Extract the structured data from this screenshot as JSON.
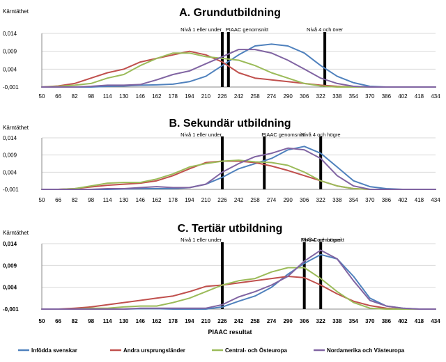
{
  "chart_data": [
    {
      "type": "line",
      "title": "A. Grundutbildning",
      "ylabel": "Kärntäthet",
      "xlabel": "",
      "ylim": [
        -0.001,
        0.014
      ],
      "yticks": [
        "-0,001",
        "0,004",
        "0,009",
        "0,014"
      ],
      "x": [
        50,
        66,
        82,
        98,
        114,
        130,
        146,
        162,
        178,
        194,
        210,
        226,
        242,
        258,
        274,
        290,
        306,
        322,
        338,
        354,
        370,
        386,
        402,
        418,
        434
      ],
      "annotations": [
        {
          "text": "Nivå 1 eller under",
          "x": 226
        },
        {
          "text": "PIAAC genomsnitt",
          "x": 232
        },
        {
          "text": "Nivå 4 och över",
          "x": 326
        }
      ],
      "series": [
        {
          "name": "Infödda svenskar",
          "color": "#4f81bd",
          "values": [
            -0.001,
            -0.001,
            -0.001,
            -0.001,
            -0.0008,
            -0.0007,
            -0.0005,
            -0.0004,
            -0.0002,
            0.0005,
            0.002,
            0.005,
            0.008,
            0.0105,
            0.011,
            0.0105,
            0.0085,
            0.005,
            0.002,
            0.0002,
            -0.0008,
            -0.001,
            -0.001,
            -0.001,
            -0.001
          ]
        },
        {
          "name": "Andra ursprungsländer",
          "color": "#c0504d",
          "values": [
            -0.001,
            -0.0007,
            0.0,
            0.0015,
            0.003,
            0.004,
            0.006,
            0.007,
            0.008,
            0.009,
            0.008,
            0.006,
            0.003,
            0.0015,
            0.001,
            0.0005,
            0.0,
            -0.0005,
            -0.0008,
            -0.001,
            -0.001,
            -0.001,
            -0.001,
            -0.001,
            -0.001
          ]
        },
        {
          "name": "Central- och Östeuropa",
          "color": "#9bbb59",
          "values": [
            -0.001,
            -0.0008,
            -0.0005,
            0.0,
            0.0015,
            0.0025,
            0.005,
            0.007,
            0.0085,
            0.0085,
            0.0075,
            0.007,
            0.0065,
            0.005,
            0.003,
            0.0015,
            0.0,
            -0.0007,
            -0.001,
            -0.001,
            -0.001,
            -0.001,
            -0.001,
            -0.001,
            -0.001
          ]
        },
        {
          "name": "Nordamerika och Västeuropa",
          "color": "#8064a2",
          "values": [
            -0.001,
            -0.001,
            -0.001,
            -0.0008,
            -0.0005,
            -0.0005,
            -0.0003,
            0.001,
            0.0025,
            0.0035,
            0.0055,
            0.0075,
            0.0095,
            0.0095,
            0.0085,
            0.0065,
            0.004,
            0.0015,
            0.0,
            -0.0008,
            -0.001,
            -0.001,
            -0.001,
            -0.001,
            -0.001
          ]
        }
      ]
    },
    {
      "type": "line",
      "title": "B. Sekundär utbildning",
      "ylabel": "Kärntäthet",
      "xlabel": "",
      "ylim": [
        -0.001,
        0.014
      ],
      "yticks": [
        "-0,001",
        "0,004",
        "0,009",
        "0,014"
      ],
      "x": [
        50,
        66,
        82,
        98,
        114,
        130,
        146,
        162,
        178,
        194,
        210,
        226,
        242,
        258,
        274,
        290,
        306,
        322,
        338,
        354,
        370,
        386,
        402,
        418,
        434
      ],
      "annotations": [
        {
          "text": "Nivå 1 eller under",
          "x": 226
        },
        {
          "text": "PIAAC genomsnitt",
          "x": 267
        },
        {
          "text": "Nivå 4 och högre",
          "x": 322
        }
      ],
      "series": [
        {
          "name": "Infödda svenskar",
          "color": "#4f81bd",
          "values": [
            -0.001,
            -0.001,
            -0.001,
            -0.001,
            -0.001,
            -0.0009,
            -0.0008,
            -0.0008,
            -0.0008,
            -0.0005,
            0.0005,
            0.0025,
            0.005,
            0.0065,
            0.008,
            0.0105,
            0.0115,
            0.0095,
            0.0055,
            0.0015,
            -0.0002,
            -0.0008,
            -0.001,
            -0.001,
            -0.001
          ]
        },
        {
          "name": "Andra ursprungsländer",
          "color": "#c0504d",
          "values": [
            -0.001,
            -0.001,
            -0.0008,
            -0.0003,
            0.0002,
            0.0005,
            0.0008,
            0.0015,
            0.003,
            0.005,
            0.0068,
            0.0072,
            0.0072,
            0.0068,
            0.0058,
            0.0045,
            0.003,
            0.0015,
            0.0,
            -0.0008,
            -0.001,
            -0.001,
            -0.001,
            -0.001,
            -0.001
          ]
        },
        {
          "name": "Central- och Östeuropa",
          "color": "#9bbb59",
          "values": [
            -0.001,
            -0.001,
            -0.0008,
            0.0,
            0.0008,
            0.001,
            0.001,
            0.002,
            0.0035,
            0.0055,
            0.0065,
            0.0072,
            0.0075,
            0.007,
            0.0068,
            0.006,
            0.004,
            0.0015,
            0.0,
            -0.0008,
            -0.001,
            -0.001,
            -0.001,
            -0.001,
            -0.001
          ]
        },
        {
          "name": "Nordamerika och Västeuropa",
          "color": "#8064a2",
          "values": [
            -0.001,
            -0.001,
            -0.001,
            -0.001,
            -0.0008,
            -0.0008,
            -0.0005,
            -0.0002,
            -0.0005,
            -0.0005,
            0.0005,
            0.004,
            0.0065,
            0.0085,
            0.0095,
            0.011,
            0.0105,
            0.008,
            0.003,
            0.0,
            -0.001,
            -0.001,
            -0.001,
            -0.001,
            -0.001
          ]
        }
      ]
    },
    {
      "type": "line",
      "title": "C. Tertiär utbildning",
      "ylabel": "Kärntäthet",
      "xlabel": "PIAAC resultat",
      "ylim": [
        -0.001,
        0.014
      ],
      "yticks": [
        "-0,001",
        "0,004",
        "0,009",
        "0,014"
      ],
      "x": [
        50,
        66,
        82,
        98,
        114,
        130,
        146,
        162,
        178,
        194,
        210,
        226,
        242,
        258,
        274,
        290,
        306,
        322,
        338,
        354,
        370,
        386,
        402,
        418,
        434
      ],
      "annotations": [
        {
          "text": "Nivå 1 eller under",
          "x": 226
        },
        {
          "text": "PIAAC genomsnitt",
          "x": 306
        },
        {
          "text": "Nivå 4 och högre",
          "x": 322
        }
      ],
      "series": [
        {
          "name": "Infödda svenskar",
          "color": "#4f81bd",
          "values": [
            -0.001,
            -0.001,
            -0.001,
            -0.001,
            -0.001,
            -0.001,
            -0.0009,
            -0.0009,
            -0.001,
            -0.001,
            -0.001,
            -0.0005,
            0.0008,
            0.002,
            0.004,
            0.007,
            0.0095,
            0.0115,
            0.0105,
            0.0065,
            0.0015,
            -0.0003,
            -0.0008,
            -0.001,
            -0.001
          ]
        },
        {
          "name": "Andra ursprungsländer",
          "color": "#c0504d",
          "values": [
            -0.001,
            -0.001,
            -0.0008,
            -0.0005,
            0.0,
            0.0005,
            0.001,
            0.0015,
            0.002,
            0.003,
            0.0042,
            0.0045,
            0.005,
            0.0055,
            0.006,
            0.0065,
            0.0062,
            0.0045,
            0.0025,
            0.0008,
            -0.0002,
            -0.0008,
            -0.001,
            -0.001,
            -0.001
          ]
        },
        {
          "name": "Central- och Östeuropa",
          "color": "#9bbb59",
          "values": [
            -0.001,
            -0.001,
            -0.001,
            -0.0008,
            -0.0008,
            -0.0005,
            -0.0003,
            -0.0003,
            0.0005,
            0.0015,
            0.003,
            0.0045,
            0.0055,
            0.006,
            0.0075,
            0.0085,
            0.0085,
            0.006,
            0.003,
            0.0005,
            -0.0008,
            -0.001,
            -0.001,
            -0.001,
            -0.001
          ]
        },
        {
          "name": "Nordamerika och Västeuropa",
          "color": "#8064a2",
          "values": [
            -0.001,
            -0.001,
            -0.001,
            -0.001,
            -0.001,
            -0.001,
            -0.0008,
            -0.0008,
            -0.0008,
            -0.0008,
            -0.0008,
            0.0,
            0.0018,
            0.003,
            0.0045,
            0.0065,
            0.01,
            0.0125,
            0.0105,
            0.0055,
            0.001,
            -0.0003,
            -0.0008,
            -0.001,
            -0.001
          ]
        }
      ]
    }
  ],
  "legend": [
    {
      "name": "Infödda svenskar",
      "color": "#4f81bd"
    },
    {
      "name": "Andra ursprungsländer",
      "color": "#c0504d"
    },
    {
      "name": "Central- och Östeuropa",
      "color": "#9bbb59"
    },
    {
      "name": "Nordamerika och Västeuropa",
      "color": "#8064a2"
    }
  ]
}
